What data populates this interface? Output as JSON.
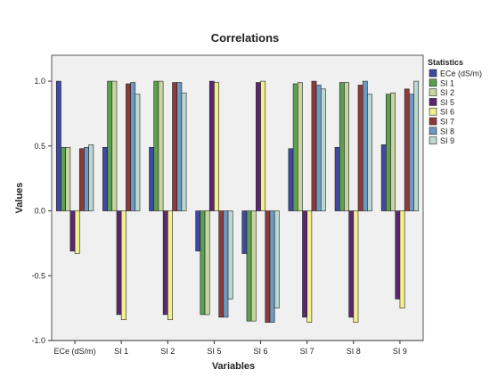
{
  "chart_data": {
    "type": "bar",
    "title": "Correlations",
    "xlabel": "Variables",
    "ylabel": "Values",
    "ylim": [
      -1.0,
      1.2
    ],
    "yticks": [
      "-1.0",
      "-0.5",
      "0.0",
      "0.5",
      "1.0"
    ],
    "ytick_values": [
      -1.0,
      -0.5,
      0.0,
      0.5,
      1.0
    ],
    "categories": [
      "ECe (dS/m)",
      "SI 1",
      "SI 2",
      "SI 5",
      "SI 6",
      "SI 7",
      "SI 8",
      "SI 9"
    ],
    "legend_title": "Statistics",
    "legend_position": "right",
    "grid": false,
    "series": [
      {
        "name": "ECe (dS/m)",
        "color": "#3f48a2",
        "values": [
          1.0,
          0.49,
          0.49,
          -0.31,
          -0.33,
          0.48,
          0.49,
          0.51
        ]
      },
      {
        "name": "SI 1",
        "color": "#5aa04f",
        "values": [
          0.49,
          1.0,
          1.0,
          -0.8,
          -0.85,
          0.98,
          0.99,
          0.9
        ]
      },
      {
        "name": "SI 2",
        "color": "#c9d5a0",
        "values": [
          0.49,
          1.0,
          1.0,
          -0.8,
          -0.85,
          0.99,
          0.99,
          0.91
        ]
      },
      {
        "name": "SI 5",
        "color": "#5b2773",
        "values": [
          -0.31,
          -0.8,
          -0.8,
          1.0,
          0.99,
          -0.82,
          -0.82,
          -0.68
        ]
      },
      {
        "name": "SI 6",
        "color": "#f3f08c",
        "values": [
          -0.33,
          -0.84,
          -0.84,
          0.99,
          1.0,
          -0.86,
          -0.86,
          -0.75
        ]
      },
      {
        "name": "SI 7",
        "color": "#8b3c3a",
        "values": [
          0.48,
          0.98,
          0.99,
          -0.82,
          -0.86,
          1.0,
          0.97,
          0.94
        ]
      },
      {
        "name": "SI 8",
        "color": "#6d9ac0",
        "values": [
          0.49,
          0.99,
          0.99,
          -0.82,
          -0.86,
          0.97,
          1.0,
          0.9
        ]
      },
      {
        "name": "SI 9",
        "color": "#bcd8d0",
        "values": [
          0.51,
          0.9,
          0.91,
          -0.68,
          -0.75,
          0.94,
          0.9,
          1.0
        ]
      }
    ],
    "colors": {
      "plot_background": "#f0f0f0",
      "bar_stroke": "#222222"
    }
  }
}
